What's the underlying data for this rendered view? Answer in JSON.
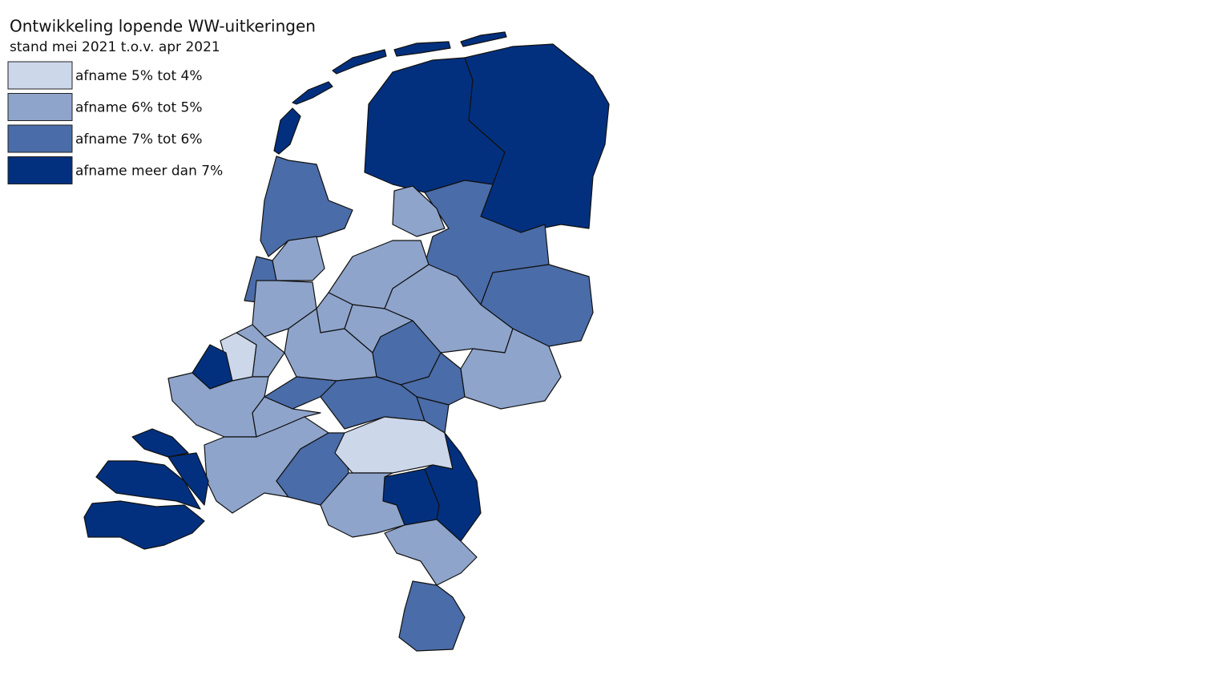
{
  "title": "Ontwikkeling lopende WW-uitkeringen",
  "subtitle": "stand mei 2021 t.o.v. apr 2021",
  "legend": [
    {
      "label": "afname 5% tot 4%",
      "color": "#cdd7ea"
    },
    {
      "label": "afname 6% tot 5%",
      "color": "#8ea4cb"
    },
    {
      "label": "afname 7% tot 6%",
      "color": "#4a6ca8"
    },
    {
      "label": "afname meer dan 7%",
      "color": "#03307e"
    }
  ]
}
